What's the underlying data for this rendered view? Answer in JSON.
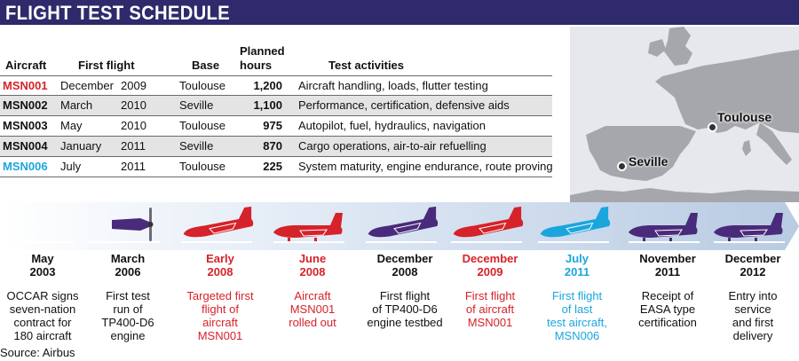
{
  "title": "FLIGHT TEST SCHEDULE",
  "colors": {
    "title_bar": "#2e2a6b",
    "red": "#d6222a",
    "cyan": "#1aa6dc",
    "purple": "#4a2a7a"
  },
  "table": {
    "headers": {
      "aircraft": "Aircraft",
      "first_flight": "First flight",
      "base": "Base",
      "hours_1": "Planned",
      "hours_2": "hours",
      "activities": "Test activities"
    },
    "rows": [
      {
        "id": "MSN001",
        "month": "December",
        "year": "2009",
        "base": "Toulouse",
        "hours": "1,200",
        "activities": "Aircraft handling, loads, flutter testing",
        "color": "#d6222a"
      },
      {
        "id": "MSN002",
        "month": "March",
        "year": "2010",
        "base": "Seville",
        "hours": "1,100",
        "activities": "Performance, certification, defensive aids",
        "color": "#111111"
      },
      {
        "id": "MSN003",
        "month": "May",
        "year": "2010",
        "base": "Toulouse",
        "hours": "975",
        "activities": "Autopilot, fuel, hydraulics, navigation",
        "color": "#111111"
      },
      {
        "id": "MSN004",
        "month": "January",
        "year": "2011",
        "base": "Seville",
        "hours": "870",
        "activities": "Cargo operations, air-to-air refuelling",
        "color": "#111111"
      },
      {
        "id": "MSN006",
        "month": "July",
        "year": "2011",
        "base": "Toulouse",
        "hours": "225",
        "activities": "System maturity, engine endurance, route proving",
        "color": "#1aa6dc"
      }
    ]
  },
  "map": {
    "cities": [
      "Toulouse",
      "Seville"
    ]
  },
  "timeline": [
    {
      "month": "May",
      "year": "2003",
      "desc": [
        "OCCAR signs",
        "seven-nation",
        "contract for",
        "180 aircraft"
      ],
      "color": "#111111",
      "icon": "contract-line"
    },
    {
      "month": "March",
      "year": "2006",
      "desc": [
        "First test",
        "run of",
        "TP400-D6",
        "engine"
      ],
      "color": "#111111",
      "icon": "engine-propeller-icon"
    },
    {
      "month": "Early",
      "year": "2008",
      "desc": [
        "Targeted first",
        "flight of",
        "aircraft",
        "MSN001"
      ],
      "color": "#d6222a",
      "icon": "red-aircraft-flying-icon"
    },
    {
      "month": "June",
      "year": "2008",
      "desc": [
        "Aircraft",
        "MSN001",
        "rolled out"
      ],
      "color": "#d6222a",
      "icon": "red-aircraft-ground-icon"
    },
    {
      "month": "December",
      "year": "2008",
      "desc": [
        "First flight",
        "of TP400-D6",
        "engine testbed"
      ],
      "color": "#111111",
      "icon": "purple-aircraft-flying-icon"
    },
    {
      "month": "December",
      "year": "2009",
      "desc": [
        "First flight",
        "of aircraft",
        "MSN001"
      ],
      "color": "#d6222a",
      "icon": "red-aircraft-flying-icon"
    },
    {
      "month": "July",
      "year": "2011",
      "desc": [
        "First flight",
        "of last",
        "test aircraft,",
        "MSN006"
      ],
      "color": "#1aa6dc",
      "icon": "cyan-aircraft-flying-icon"
    },
    {
      "month": "November",
      "year": "2011",
      "desc": [
        "Receipt of",
        "EASA type",
        "certification"
      ],
      "color": "#111111",
      "icon": "purple-aircraft-ground-icon"
    },
    {
      "month": "December",
      "year": "2012",
      "desc": [
        "Entry into",
        "service",
        "and first",
        "delivery"
      ],
      "color": "#111111",
      "icon": "purple-aircraft-ground-icon"
    }
  ],
  "source": "Source: Airbus"
}
